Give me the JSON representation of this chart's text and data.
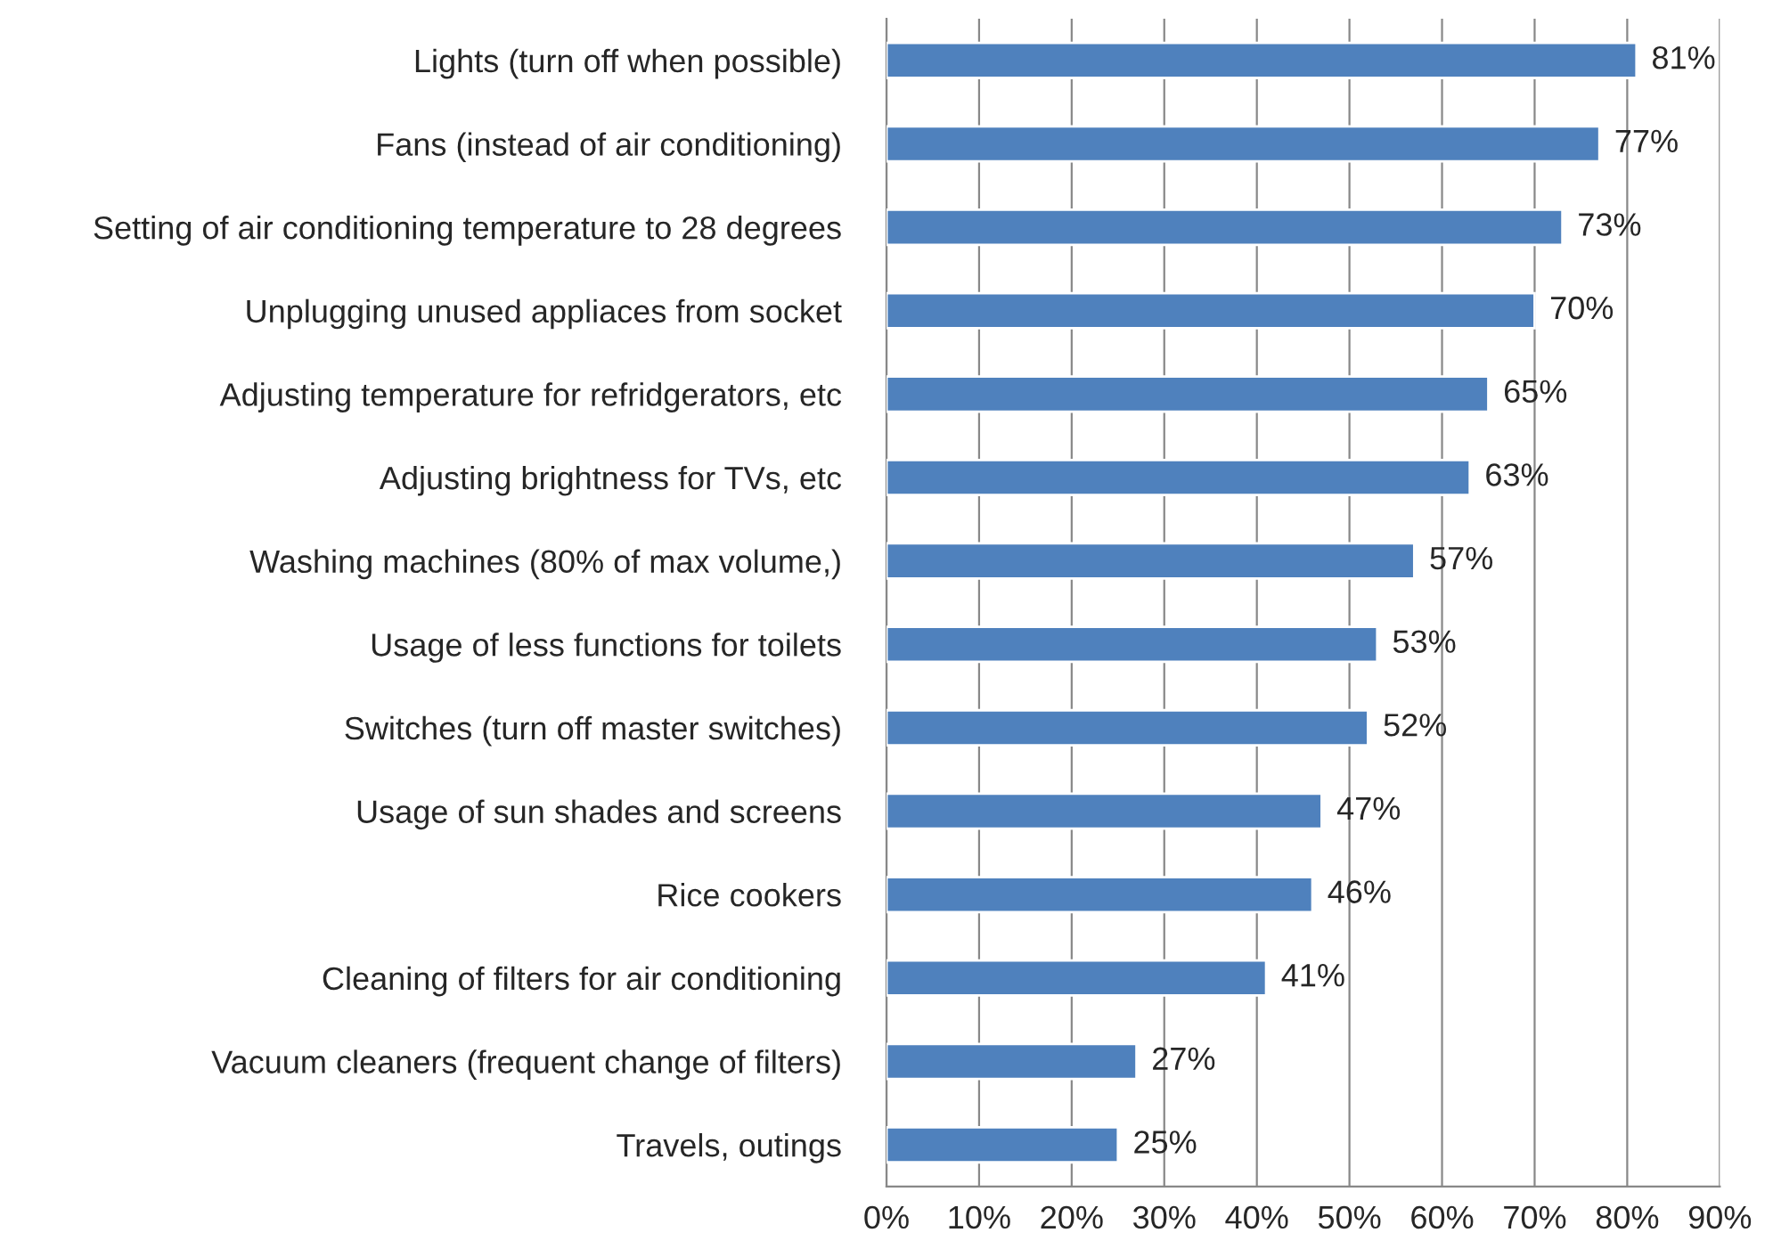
{
  "chart_data": {
    "type": "bar",
    "orientation": "horizontal",
    "categories": [
      "Lights (turn off when possible)",
      "Fans (instead of air conditioning)",
      "Setting of air conditioning temperature to 28 degrees",
      "Unplugging unused appliaces from socket",
      "Adjusting temperature for refridgerators, etc",
      "Adjusting brightness for TVs, etc",
      "Washing machines (80% of max volume,)",
      "Usage of less functions for toilets",
      "Switches (turn off master switches)",
      "Usage of sun shades and screens",
      "Rice cookers",
      "Cleaning of filters for air conditioning",
      "Vacuum cleaners (frequent change of filters)",
      "Travels, outings"
    ],
    "values": [
      81,
      77,
      73,
      70,
      65,
      63,
      57,
      53,
      52,
      47,
      46,
      41,
      27,
      25
    ],
    "value_labels": [
      "81%",
      "77%",
      "73%",
      "70%",
      "65%",
      "63%",
      "57%",
      "53%",
      "52%",
      "47%",
      "46%",
      "41%",
      "27%",
      "25%"
    ],
    "color": "#4f81bd",
    "xlim": [
      0,
      90
    ],
    "xticks": [
      {
        "value": 0,
        "label": "0%"
      },
      {
        "value": 10,
        "label": "10%"
      },
      {
        "value": 20,
        "label": "20%"
      },
      {
        "value": 30,
        "label": "30%"
      },
      {
        "value": 40,
        "label": "40%"
      },
      {
        "value": 50,
        "label": "50%"
      },
      {
        "value": 60,
        "label": "60%"
      },
      {
        "value": 70,
        "label": "70%"
      },
      {
        "value": 80,
        "label": "80%"
      },
      {
        "value": 90,
        "label": "90%"
      }
    ],
    "grid": "x"
  }
}
